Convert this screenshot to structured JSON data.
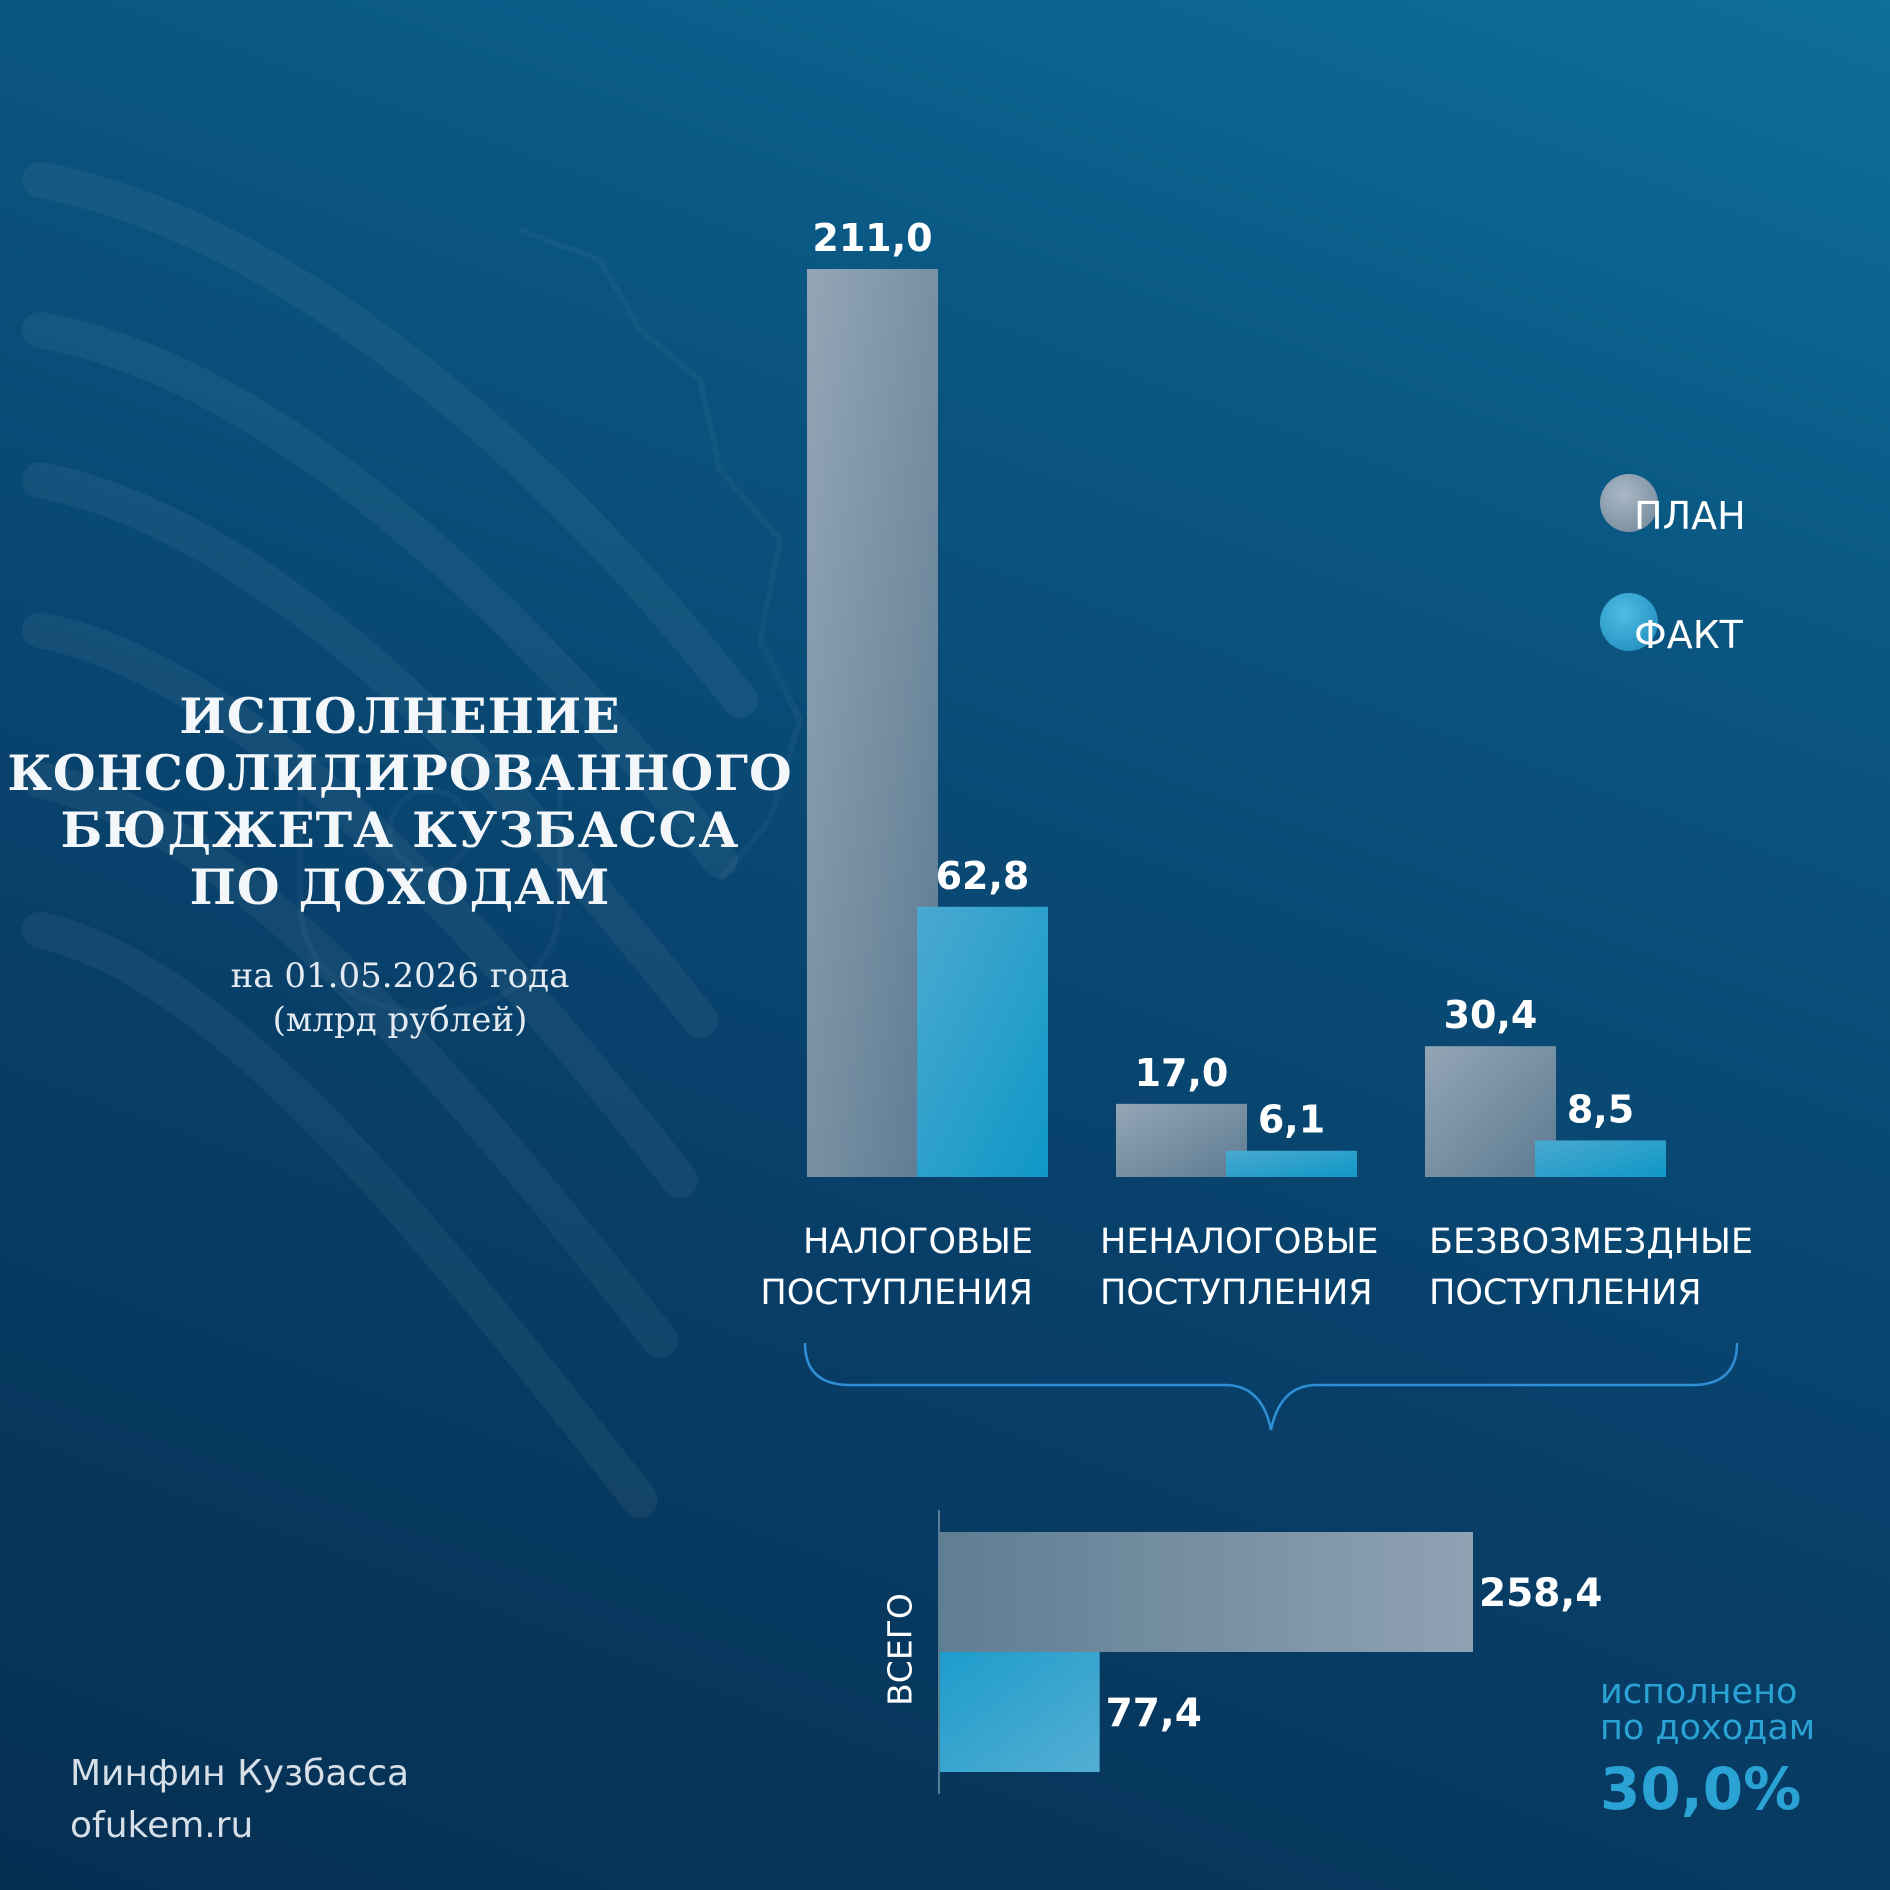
{
  "title": {
    "lines": [
      "ИСПОЛНЕНИЕ",
      "КОНСОЛИДИРОВАННОГО",
      "БЮДЖЕТА КУЗБАССА",
      "ПО ДОХОДАМ"
    ],
    "date": "на 01.05.2026 года",
    "units": "(млрд рублей)"
  },
  "legend": [
    {
      "label": "ПЛАН",
      "color": "#8a9eaf"
    },
    {
      "label": "ФАКТ",
      "color": "#2aa3d4"
    }
  ],
  "chart_data": [
    {
      "type": "bar",
      "categories": [
        [
          "НАЛОГОВЫЕ",
          "ПОСТУПЛЕНИЯ"
        ],
        [
          "НЕНАЛОГОВЫЕ",
          "ПОСТУПЛЕНИЯ"
        ],
        [
          "БЕЗВОЗМЕЗДНЫЕ",
          "ПОСТУПЛЕНИЯ"
        ]
      ],
      "series": [
        {
          "name": "ПЛАН",
          "values": [
            211.0,
            17.0,
            30.4
          ],
          "labels": [
            "211,0",
            "17,0",
            "30,4"
          ]
        },
        {
          "name": "ФАКТ",
          "values": [
            62.8,
            6.1,
            8.5
          ],
          "labels": [
            "62,8",
            "6,1",
            "8,5"
          ]
        }
      ],
      "ylim": [
        0,
        211
      ]
    },
    {
      "type": "bar",
      "orientation": "horizontal",
      "category": "ВСЕГО",
      "series": [
        {
          "name": "ПЛАН",
          "value": 258.4,
          "label": "258,4"
        },
        {
          "name": "ФАКТ",
          "value": 77.4,
          "label": "77,4"
        }
      ],
      "xlim": [
        0,
        258.4
      ]
    }
  ],
  "summary": {
    "line1": "исполнено",
    "line2": "по доходам",
    "percent": "30,0%"
  },
  "footer": {
    "org": "Минфин Кузбасса",
    "site": "ofukem.ru"
  },
  "colors": {
    "plan": "#8a9eaf",
    "fact": "#2aa3d4",
    "background": "#08406a"
  },
  "icons": {
    "background": "kuzbass-emblem-watermark"
  }
}
